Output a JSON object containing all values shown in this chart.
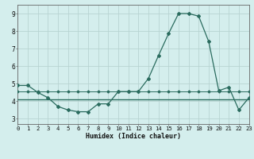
{
  "x": [
    0,
    1,
    2,
    3,
    4,
    5,
    6,
    7,
    8,
    9,
    10,
    11,
    12,
    13,
    14,
    15,
    16,
    17,
    18,
    19,
    20,
    21,
    22,
    23
  ],
  "line_main": [
    4.9,
    4.9,
    4.5,
    4.2,
    3.7,
    3.5,
    3.4,
    3.4,
    3.85,
    3.85,
    4.55,
    4.55,
    4.55,
    5.3,
    6.6,
    7.85,
    9.0,
    9.0,
    8.85,
    7.4,
    4.6,
    4.8,
    3.5,
    4.2
  ],
  "line_avg": [
    4.55,
    4.55,
    4.55,
    4.55,
    4.55,
    4.55,
    4.55,
    4.55,
    4.55,
    4.55,
    4.55,
    4.55,
    4.55,
    4.55,
    4.55,
    4.55,
    4.55,
    4.55,
    4.55,
    4.55,
    4.55,
    4.55,
    4.55,
    4.55
  ],
  "line_flat": [
    4.1,
    4.1,
    4.1,
    4.1,
    4.1,
    4.1,
    4.1,
    4.1,
    4.1,
    4.1,
    4.1,
    4.1,
    4.1,
    4.1,
    4.1,
    4.1,
    4.1,
    4.1,
    4.1,
    4.1,
    4.1,
    4.1,
    4.1,
    4.1
  ],
  "xlabel": "Humidex (Indice chaleur)",
  "bg_color": "#d4eeed",
  "grid_color": "#b8d4d2",
  "line_color": "#2a6b5e",
  "xlim": [
    0,
    23
  ],
  "ylim": [
    2.7,
    9.5
  ],
  "yticks": [
    3,
    4,
    5,
    6,
    7,
    8,
    9
  ],
  "xticks": [
    0,
    1,
    2,
    3,
    4,
    5,
    6,
    7,
    8,
    9,
    10,
    11,
    12,
    13,
    14,
    15,
    16,
    17,
    18,
    19,
    20,
    21,
    22,
    23
  ],
  "tick_fontsize": 5.2,
  "xlabel_fontsize": 6.0
}
